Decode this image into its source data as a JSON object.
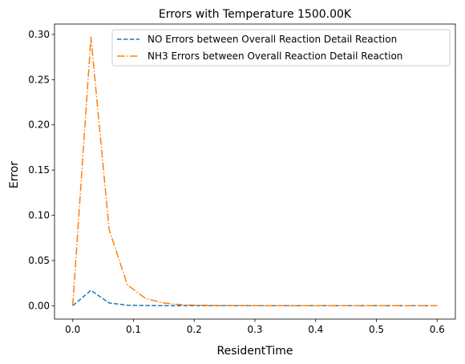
{
  "chart_data": {
    "type": "line",
    "title": "Errors with Temperature 1500.00K",
    "xlabel": "ResidentTime",
    "ylabel": "Error",
    "xlim": [
      -0.03,
      0.63
    ],
    "ylim": [
      -0.0148,
      0.3115
    ],
    "xticks": [
      0.0,
      0.1,
      0.2,
      0.3,
      0.4,
      0.5,
      0.6
    ],
    "xtick_labels": [
      "0.0",
      "0.1",
      "0.2",
      "0.3",
      "0.4",
      "0.5",
      "0.6"
    ],
    "yticks": [
      0.0,
      0.05,
      0.1,
      0.15,
      0.2,
      0.25,
      0.3
    ],
    "ytick_labels": [
      "0.00",
      "0.05",
      "0.10",
      "0.15",
      "0.20",
      "0.25",
      "0.30"
    ],
    "grid": false,
    "legend_position": "top-right",
    "x": [
      0.0,
      0.03,
      0.06,
      0.09,
      0.12,
      0.15,
      0.18,
      0.21,
      0.24,
      0.27,
      0.3,
      0.33,
      0.36,
      0.39,
      0.42,
      0.45,
      0.48,
      0.51,
      0.54,
      0.57,
      0.6
    ],
    "series": [
      {
        "name": "NO Errors between Overall Reaction Detail Reaction",
        "color": "#1f77b4",
        "style": "dashed",
        "values": [
          0.0,
          0.017,
          0.003,
          0.0006,
          0.0002,
          0.0001,
          0.0,
          0.0,
          0.0,
          0.0,
          0.0,
          0.0,
          0.0,
          0.0,
          0.0,
          0.0,
          0.0,
          0.0,
          0.0,
          0.0,
          0.0
        ]
      },
      {
        "name": "NH3 Errors between Overall Reaction Detail Reaction",
        "color": "#ff7f0e",
        "style": "dashdot",
        "values": [
          0.0,
          0.297,
          0.084,
          0.023,
          0.008,
          0.003,
          0.001,
          0.0005,
          0.0003,
          0.0002,
          0.0001,
          0.0001,
          0.0,
          0.0,
          0.0,
          0.0,
          0.0,
          0.0,
          0.0,
          0.0,
          0.0
        ]
      }
    ]
  }
}
